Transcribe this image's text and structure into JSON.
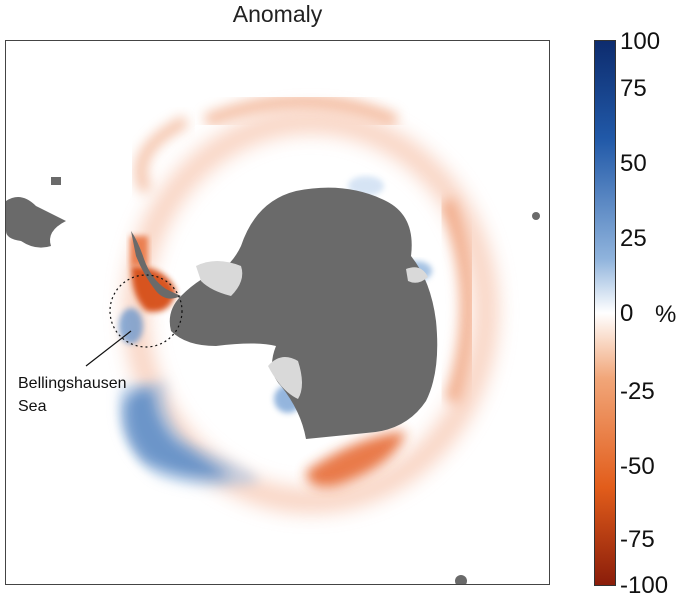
{
  "title": "Anomaly",
  "annotation": {
    "region_line1": "Bellingshausen",
    "region_line2": "Sea"
  },
  "colorbar": {
    "unit": "%",
    "ticks": [
      "100",
      "75",
      "50",
      "25",
      "0",
      "-25",
      "-50",
      "-75",
      "-100"
    ],
    "colors": {
      "max": "#0d2c6e",
      "high": "#2159a8",
      "mid_high": "#8fb3dc",
      "zero": "#ffffff",
      "mid_low": "#f1a679",
      "low": "#e25d1b",
      "min": "#8a1d0a"
    }
  },
  "map_colors": {
    "land": "#6a6a6a",
    "ice_shelf": "#d9d9d9",
    "negative_anomaly": "#ef8f60",
    "strong_negative": "#d9501a",
    "positive_anomaly": "#a9c5e6",
    "strong_positive": "#1f56a3"
  }
}
